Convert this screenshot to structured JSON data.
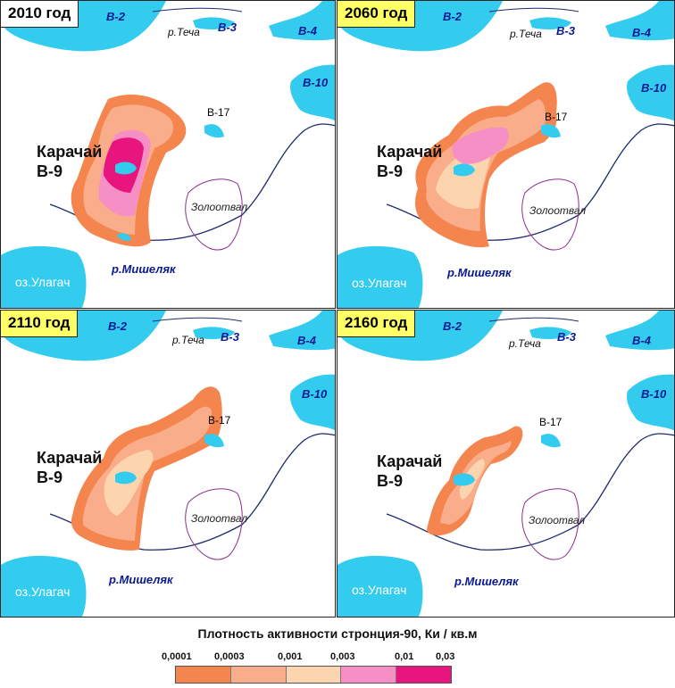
{
  "panels": [
    {
      "year": "2010 год",
      "year_bg": "#ffffff"
    },
    {
      "year": "2060 год",
      "year_bg": "#ffff66"
    },
    {
      "year": "2110 год",
      "year_bg": "#ffff66"
    },
    {
      "year": "2160 год",
      "year_bg": "#ffff66"
    }
  ],
  "labels": {
    "v2": "В-2",
    "v3": "В-3",
    "v4": "В-4",
    "v10": "В-10",
    "v17": "В-17",
    "techa": "р.Теча",
    "karachai_1": "Карачай",
    "karachai_2": "В-9",
    "zolotoval": "Золоотвал",
    "mishelyak": "р.Мишеляк",
    "ulagach": "оз.Улагач"
  },
  "legend": {
    "title": "Плотность активности стронция-90, Ки / кв.м",
    "ticks": [
      "0,0001",
      "0,0003",
      "0,001",
      "0,003",
      "0,01",
      "0,03"
    ],
    "colors": [
      "#f5854f",
      "#f9ad8a",
      "#fcd4ae",
      "#f58fc6",
      "#e8157e"
    ]
  },
  "colors": {
    "water": "#33ccee",
    "river": "#1f2a6e",
    "border": "#8a2f8f",
    "level1": "#f5854f",
    "level2": "#f9ad8a",
    "level3": "#fcd4ae",
    "level4": "#f58fc6",
    "level5": "#e8157e"
  }
}
